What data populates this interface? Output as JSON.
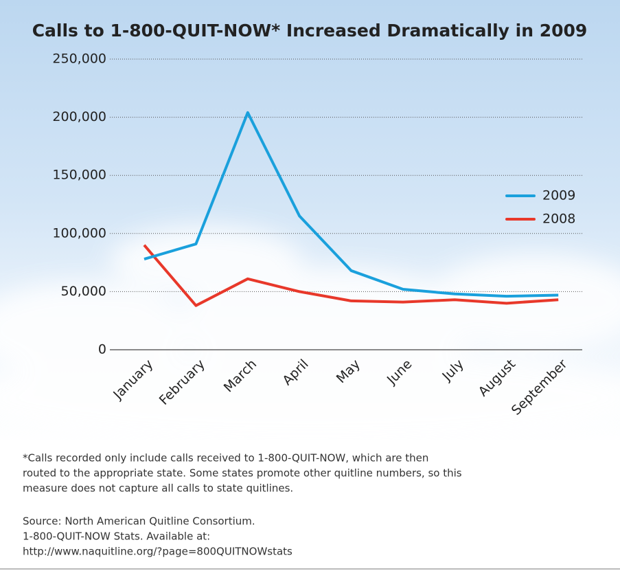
{
  "chart_data": {
    "type": "line",
    "title": "Calls to 1-800-QUIT-NOW* Increased Dramatically in 2009",
    "categories": [
      "January",
      "February",
      "March",
      "April",
      "May",
      "June",
      "July",
      "August",
      "September"
    ],
    "series": [
      {
        "name": "2009",
        "color": "#1aa0dc",
        "values": [
          78000,
          91000,
          204000,
          115000,
          68000,
          52000,
          48000,
          46000,
          47000
        ]
      },
      {
        "name": "2008",
        "color": "#e8382a",
        "values": [
          90000,
          38000,
          61000,
          50000,
          42000,
          41000,
          43000,
          40000,
          43000
        ]
      }
    ],
    "ylim": [
      0,
      250000
    ],
    "yticks": [
      0,
      {
        "value": 50000,
        "label": "50,000"
      },
      {
        "value": 100000,
        "label": "100,000"
      },
      {
        "value": 150000,
        "label": "150,000"
      },
      {
        "value": 200000,
        "label": "200,000"
      },
      {
        "value": 250000,
        "label": "250,000"
      }
    ],
    "grid": true,
    "legend": "right",
    "footnote": [
      "*Calls recorded only include calls received to 1-800-QUIT-NOW, which are then",
      "routed to the appropriate state. Some states promote other quitline numbers, so this",
      "measure does not capture all calls to state quitlines."
    ],
    "source": [
      "Source: North American Quitline Consortium.",
      "1-800-QUIT-NOW Stats. Available at:",
      "http://www.naquitline.org/?page=800QUITNOWstats"
    ]
  }
}
